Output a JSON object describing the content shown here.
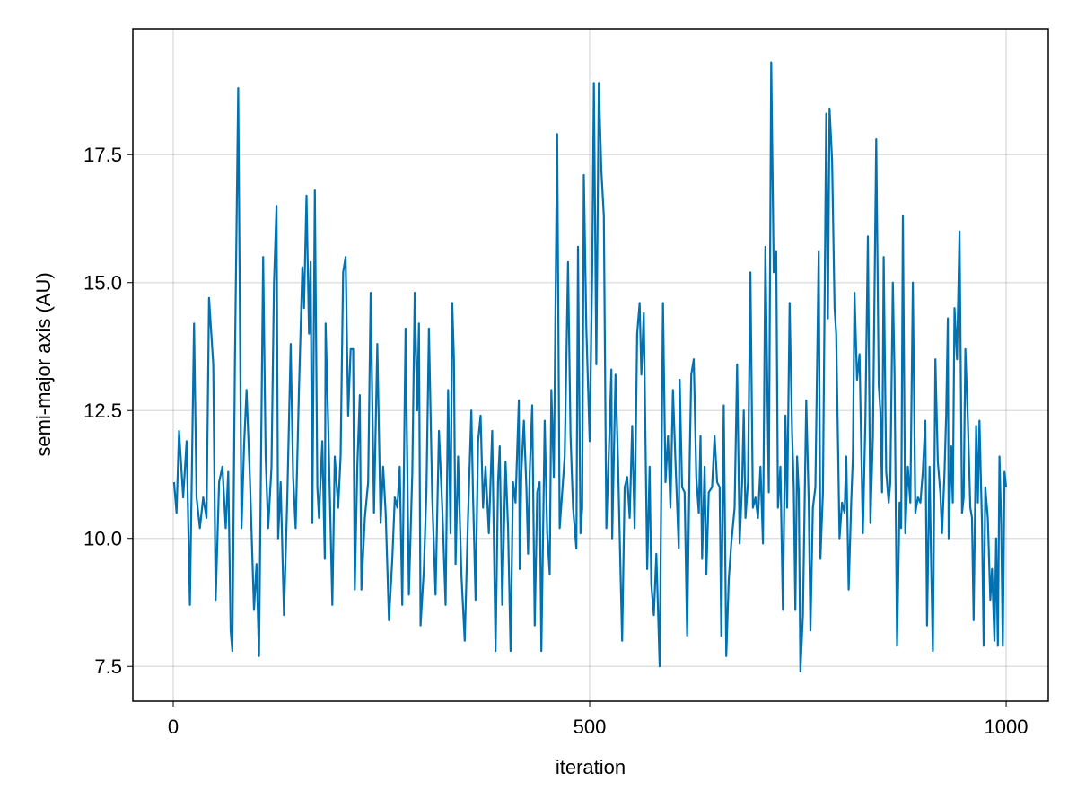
{
  "chart_data": {
    "type": "line",
    "title": "",
    "xlabel": "iteration",
    "ylabel": "semi-major axis (AU)",
    "xlim": [
      -48.5,
      1050.6
    ],
    "ylim": [
      6.82,
      19.96
    ],
    "xticks": [
      0,
      500,
      1000
    ],
    "xtick_labels": [
      "0",
      "500",
      "1000"
    ],
    "yticks": [
      7.5,
      10.0,
      12.5,
      15.0,
      17.5
    ],
    "ytick_labels": [
      "7.5",
      "10.0",
      "12.5",
      "15.0",
      "17.5"
    ],
    "grid": true,
    "line_color": "#0072b2",
    "series": [
      {
        "x": [
          1,
          4,
          7,
          12,
          16,
          20,
          25,
          28,
          32,
          36,
          40,
          43,
          48,
          51,
          55,
          59,
          63,
          66,
          69,
          71,
          74,
          78,
          82,
          85,
          88,
          92,
          97,
          100,
          103,
          106,
          108,
          111,
          114,
          118,
          121,
          124,
          126,
          129,
          133,
          137,
          141,
          144,
          147,
          151,
          155,
          157,
          160,
          163,
          165,
          167,
          170,
          173,
          175,
          179,
          182,
          183,
          186,
          191,
          194,
          198,
          201,
          204,
          207,
          210,
          213,
          216,
          218,
          221,
          224,
          226,
          230,
          234,
          237,
          241,
          245,
          249,
          252,
          255,
          259,
          263,
          266,
          269,
          272,
          275,
          279,
          283,
          287,
          290,
          293,
          295,
          297,
          301,
          304,
          307,
          311,
          315,
          319,
          323,
          327,
          330,
          333,
          335,
          337,
          339,
          342,
          346,
          350,
          354,
          358,
          360,
          363,
          366,
          369,
          372,
          375,
          379,
          383,
          387,
          390,
          392,
          395,
          399,
          402,
          405,
          408,
          411,
          415,
          416,
          418,
          421,
          424,
          426,
          428,
          431,
          434,
          437,
          440,
          442,
          446,
          449,
          452,
          454,
          457,
          461,
          464,
          467,
          470,
          474,
          477,
          480,
          484,
          486,
          489,
          491,
          493,
          496,
          500,
          503,
          505,
          508,
          511,
          514,
          517,
          520,
          523,
          526,
          527,
          531,
          534,
          536,
          539,
          542,
          545,
          548,
          551,
          554,
          557,
          560,
          562,
          565,
          569,
          572,
          574,
          577,
          580,
          584,
          588,
          591,
          594,
          597,
          600,
          603,
          607,
          608,
          611,
          614,
          617,
          620,
          622,
          625,
          628,
          631,
          633,
          635,
          638,
          640,
          643,
          647,
          650,
          653,
          656,
          658,
          661,
          664,
          667,
          670,
          674,
          677,
          680,
          683,
          685,
          687,
          690,
          693,
          696,
          699,
          702,
          705,
          708,
          711,
          715,
          718,
          721,
          724,
          726,
          729,
          732,
          735,
          737,
          740,
          743,
          745,
          747,
          749,
          751,
          753,
          756,
          760,
          763,
          765,
          768,
          771,
          775,
          777,
          780,
          784,
          786,
          788,
          791,
          794,
          796,
          800,
          803,
          806,
          808,
          811,
          814,
          816,
          818,
          821,
          824,
          828,
          831,
          834,
          837,
          840,
          844,
          847,
          849,
          851,
          853,
          856,
          859,
          861,
          864,
          866,
          869,
          872,
          874,
          876,
          879,
          882,
          885,
          888,
          891,
          894,
          897,
          900,
          903,
          905,
          908,
          910,
          912,
          915,
          918,
          921,
          923,
          926,
          928,
          930,
          931,
          934,
          936,
          938,
          941,
          944,
          947,
          949,
          951,
          954,
          957,
          959,
          961,
          964,
          966,
          968,
          971,
          973,
          975,
          978,
          981,
          983,
          986,
          988,
          990,
          992,
          994,
          996,
          998,
          1000
        ],
        "y": [
          11.1,
          10.5,
          12.1,
          10.8,
          11.9,
          8.7,
          14.2,
          10.8,
          10.2,
          10.8,
          10.4,
          14.7,
          13.4,
          8.8,
          11.1,
          11.4,
          10.2,
          11.3,
          8.2,
          7.8,
          13.4,
          18.8,
          10.2,
          11.8,
          12.9,
          11.2,
          8.6,
          9.5,
          7.7,
          12.5,
          15.5,
          11.6,
          10.2,
          11.4,
          15.0,
          16.5,
          10.0,
          11.1,
          8.5,
          10.8,
          13.8,
          11.2,
          10.2,
          12.9,
          15.3,
          14.5,
          16.7,
          14.0,
          15.4,
          10.3,
          16.8,
          11.0,
          10.4,
          11.9,
          9.6,
          14.2,
          12.3,
          8.7,
          11.6,
          10.6,
          11.6,
          15.2,
          15.5,
          12.4,
          13.7,
          13.7,
          9.0,
          11.4,
          12.8,
          9.0,
          10.4,
          11.1,
          14.8,
          10.5,
          13.8,
          10.3,
          11.4,
          10.5,
          8.4,
          9.6,
          10.8,
          10.6,
          11.4,
          8.7,
          14.1,
          8.9,
          11.3,
          14.8,
          12.5,
          14.2,
          8.3,
          9.4,
          10.9,
          14.1,
          10.8,
          8.9,
          12.1,
          10.6,
          8.7,
          12.9,
          10.1,
          14.6,
          13.5,
          9.5,
          11.6,
          9.3,
          8.0,
          10.4,
          12.5,
          10.8,
          8.8,
          11.9,
          12.4,
          10.6,
          11.4,
          10.1,
          12.1,
          7.8,
          11.1,
          11.8,
          8.7,
          11.5,
          10.2,
          7.8,
          11.1,
          10.7,
          12.7,
          9.4,
          11.3,
          12.3,
          11.0,
          9.7,
          11.3,
          12.6,
          8.3,
          10.9,
          11.1,
          7.8,
          12.3,
          10.1,
          9.3,
          12.9,
          11.2,
          17.9,
          10.2,
          10.9,
          11.6,
          15.4,
          12.0,
          10.6,
          9.8,
          15.7,
          10.1,
          10.6,
          17.1,
          14.1,
          11.9,
          15.2,
          18.9,
          13.4,
          18.9,
          17.2,
          16.3,
          10.2,
          11.7,
          13.3,
          10.0,
          13.2,
          11.5,
          10.1,
          8.0,
          11.0,
          11.2,
          10.4,
          12.2,
          10.2,
          14.0,
          14.6,
          13.2,
          14.4,
          9.4,
          11.4,
          9.1,
          8.5,
          9.7,
          7.5,
          14.6,
          11.1,
          12.0,
          10.6,
          12.9,
          11.5,
          9.8,
          13.1,
          11.0,
          10.9,
          8.1,
          11.5,
          13.2,
          13.5,
          11.2,
          10.5,
          12.0,
          9.6,
          11.4,
          9.3,
          10.9,
          11.0,
          12.0,
          11.1,
          11.0,
          8.1,
          12.6,
          7.7,
          9.2,
          9.9,
          10.6,
          13.4,
          9.9,
          11.1,
          12.5,
          10.4,
          11.1,
          15.2,
          10.6,
          10.8,
          10.4,
          11.4,
          9.9,
          15.7,
          10.9,
          19.3,
          15.2,
          15.6,
          10.6,
          11.4,
          8.6,
          12.4,
          10.6,
          14.6,
          12.1,
          11.0,
          8.6,
          11.6,
          10.9,
          7.4,
          8.5,
          12.7,
          10.7,
          8.2,
          10.6,
          11.0,
          15.6,
          9.6,
          10.9,
          18.3,
          14.3,
          18.4,
          17.4,
          14.5,
          14.0,
          10.0,
          10.7,
          10.5,
          11.6,
          9.0,
          10.7,
          11.6,
          14.8,
          13.1,
          13.6,
          10.1,
          12.3,
          15.9,
          10.3,
          12.0,
          17.8,
          13.0,
          12.5,
          10.9,
          15.5,
          11.3,
          10.7,
          11.1,
          15.0,
          13.2,
          7.9,
          10.7,
          10.2,
          16.3,
          10.1,
          11.4,
          10.7,
          15.0,
          10.5,
          10.8,
          10.7,
          11.3,
          12.3,
          8.3,
          11.4,
          9.5,
          7.8,
          13.5,
          11.5,
          10.9,
          10.1,
          11.3,
          12.4,
          14.3,
          10.0,
          11.8,
          10.7,
          14.5,
          13.5,
          16.0,
          10.5,
          10.8,
          13.7,
          12.3,
          10.6,
          10.4,
          8.4,
          12.2,
          10.7,
          12.3,
          10.3,
          7.9,
          11.0,
          10.4,
          8.8,
          9.4,
          8.0,
          10.0,
          7.9,
          11.6,
          10.3,
          7.9,
          11.3,
          11.0
        ]
      }
    ]
  }
}
